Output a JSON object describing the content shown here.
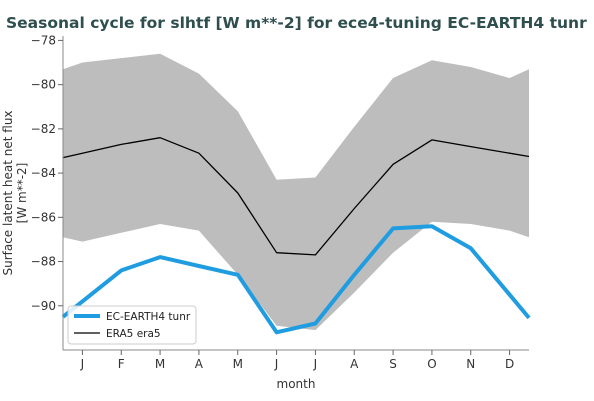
{
  "chart_data": {
    "type": "line",
    "title": "Seasonal cycle for slhtf [W m**-2] for ece4-tuning EC-EARTH4 tunr",
    "xlabel": "month",
    "ylabel_line1": "Surface latent heat net flux",
    "ylabel_line2": "[W m**-2]",
    "categories": [
      "J",
      "F",
      "M",
      "A",
      "M",
      "J",
      "J",
      "A",
      "S",
      "O",
      "N",
      "D"
    ],
    "ylim": [
      -92.0,
      -77.8
    ],
    "yticks": [
      -78,
      -80,
      -82,
      -84,
      -86,
      -88,
      -90
    ],
    "ytick_labels": [
      "−78",
      "−80",
      "−82",
      "−84",
      "−86",
      "−88",
      "−90"
    ],
    "legend_position": "bottom-left",
    "series": [
      {
        "name": "EC-EARTH4 tunr",
        "color": "#1f9de0",
        "values": [
          -89.8,
          -88.4,
          -87.8,
          -88.2,
          -88.6,
          -91.2,
          -90.8,
          -88.6,
          -86.5,
          -86.4,
          -87.4,
          -89.5
        ]
      },
      {
        "name": "ERA5 era5",
        "color": "#000000",
        "values": [
          -83.1,
          -82.7,
          -82.4,
          -83.1,
          -84.9,
          -87.6,
          -87.7,
          -85.6,
          -83.6,
          -82.5,
          -82.8,
          -83.1
        ]
      }
    ],
    "band": {
      "color": "#bdbdbd",
      "upper": [
        -79.0,
        -78.8,
        -78.6,
        -79.5,
        -81.2,
        -84.3,
        -84.2,
        -81.9,
        -79.7,
        -78.9,
        -79.2,
        -79.7
      ],
      "lower": [
        -87.1,
        -86.7,
        -86.3,
        -86.6,
        -88.6,
        -90.9,
        -91.1,
        -89.4,
        -87.6,
        -86.2,
        -86.3,
        -86.6
      ]
    }
  }
}
